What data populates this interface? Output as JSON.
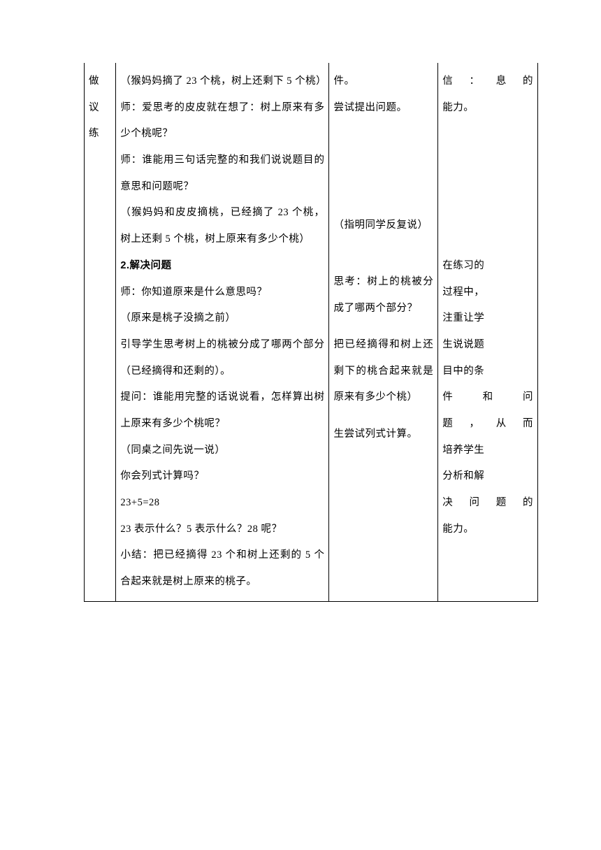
{
  "col1": {
    "lines": [
      "做",
      "议",
      "练"
    ]
  },
  "col2": {
    "p1": "（猴妈妈摘了 23 个桃，树上还剩下 5 个桃）",
    "p2": "师：爱思考的皮皮就在想了：树上原来有多少个桃呢？",
    "p3": "师：谁能用三句话完整的和我们说说题目的意思和问题呢？",
    "p4": "（猴妈妈和皮皮摘桃，已经摘了 23 个桃，树上还剩 5 个桃，树上原来有多少个桃）",
    "h1": "2.解决问题",
    "p5": "师：你知道原来是什么意思吗？",
    "p6": "（原来是桃子没摘之前）",
    "p7": "引导学生思考树上的桃被分成了哪两个部分（已经摘得和还剩的）。",
    "p8": "提问：谁能用完整的话说说看，怎样算出树上原来有多少个桃呢？",
    "p9": "（同桌之间先说一说）",
    "p10": "你会列式计算吗？",
    "p11": "23+5=28",
    "p12": "23 表示什么？5 表示什么？28 呢？",
    "p13": "小结：把已经摘得 23 个和树上还剩的 5 个合起来就是树上原来的桃子。"
  },
  "col3": {
    "p1": "件。",
    "p2": "尝试提出问题。",
    "p3": "（指明同学反复说）",
    "p4": "思考：树上的桃被分成了哪两个部分？",
    "p5": "把已经摘得和树上还剩下的桃合起来就是原来有多少个桃）",
    "p6": "生尝试列式计算。"
  },
  "col4": {
    "p1a": "信：息的",
    "p1b": "能力。",
    "p2": "在练习的",
    "p3": "过程中，",
    "p4": "注重让学",
    "p5": "生说说题",
    "p6": "目中的条",
    "p7a": "件和问",
    "p8a": "题，从而",
    "p9": "培养学生",
    "p10": "分析和解",
    "p11a": "决问题的",
    "p12": "能力。"
  }
}
